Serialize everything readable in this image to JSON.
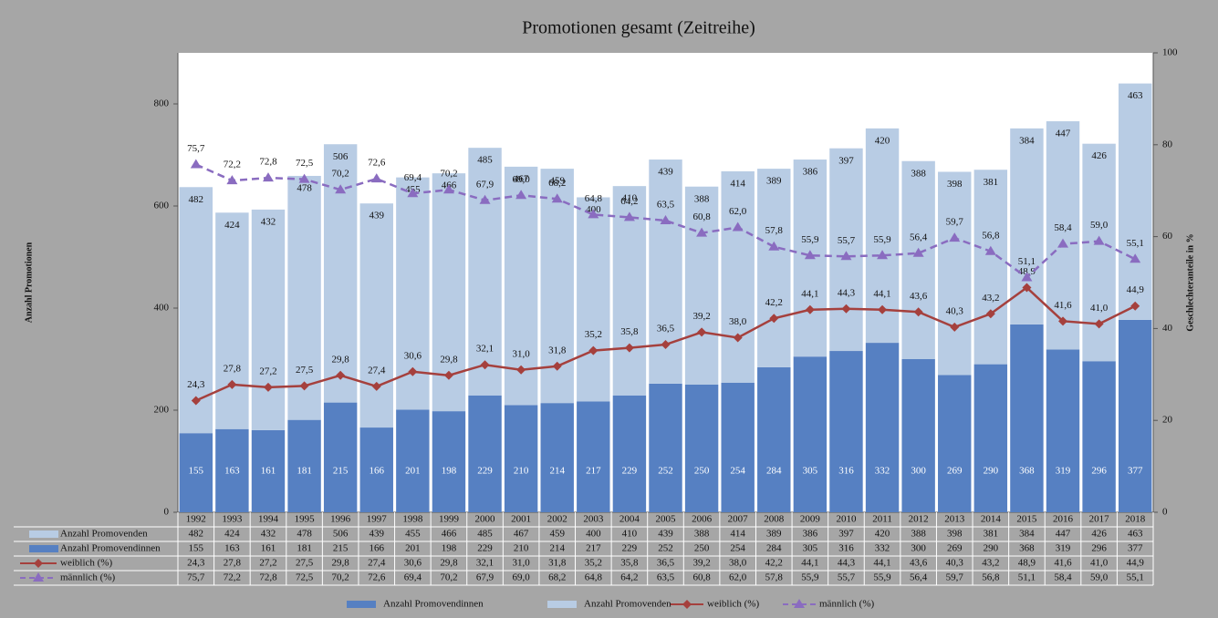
{
  "chart_data": {
    "type": "bar",
    "title": "Promotionen gesamt (Zeitreihe)",
    "ylabel": "Anzahl Promotionen",
    "y2label": "Geschlechteranteile in %",
    "categories": [
      "1992",
      "1993",
      "1994",
      "1995",
      "1996",
      "1997",
      "1998",
      "1999",
      "2000",
      "2001",
      "2002",
      "2003",
      "2004",
      "2005",
      "2006",
      "2007",
      "2008",
      "2009",
      "2010",
      "2011",
      "2012",
      "2013",
      "2014",
      "2015",
      "2016",
      "2017",
      "2018"
    ],
    "series": [
      {
        "name": "Anzahl Promovendinnen",
        "type": "bar",
        "color": "#5680c2",
        "values": [
          155,
          163,
          161,
          181,
          215,
          166,
          201,
          198,
          229,
          210,
          214,
          217,
          229,
          252,
          250,
          254,
          284,
          305,
          316,
          332,
          300,
          269,
          290,
          368,
          319,
          296,
          377
        ]
      },
      {
        "name": "Anzahl Promovenden",
        "type": "bar",
        "color": "#b8cce4",
        "values": [
          482,
          424,
          432,
          478,
          506,
          439,
          455,
          466,
          485,
          467,
          459,
          400,
          410,
          439,
          388,
          414,
          389,
          386,
          397,
          420,
          388,
          398,
          381,
          384,
          447,
          426,
          463
        ]
      },
      {
        "name": "weiblich (%)",
        "type": "line",
        "axis": "y2",
        "color": "#a5403d",
        "marker": "diamond",
        "dashed": false,
        "values": [
          24.3,
          27.8,
          27.2,
          27.5,
          29.8,
          27.4,
          30.6,
          29.8,
          32.1,
          31.0,
          31.8,
          35.2,
          35.8,
          36.5,
          39.2,
          38.0,
          42.2,
          44.1,
          44.3,
          44.1,
          43.6,
          40.3,
          43.2,
          48.9,
          41.6,
          41.0,
          44.9
        ],
        "value_labels": [
          "24,3",
          "27,8",
          "27,2",
          "27,5",
          "29,8",
          "27,4",
          "30,6",
          "29,8",
          "32,1",
          "31,0",
          "31,8",
          "35,2",
          "35,8",
          "36,5",
          "39,2",
          "38,0",
          "42,2",
          "44,1",
          "44,3",
          "44,1",
          "43,6",
          "40,3",
          "43,2",
          "48,9",
          "41,6",
          "41,0",
          "44,9"
        ]
      },
      {
        "name": "männlich (%)",
        "type": "line",
        "axis": "y2",
        "color": "#8a6cc0",
        "marker": "triangle",
        "dashed": true,
        "values": [
          75.7,
          72.2,
          72.8,
          72.5,
          70.2,
          72.6,
          69.4,
          70.2,
          67.9,
          69.0,
          68.2,
          64.8,
          64.2,
          63.5,
          60.8,
          62.0,
          57.8,
          55.9,
          55.7,
          55.9,
          56.4,
          59.7,
          56.8,
          51.1,
          58.4,
          59.0,
          55.1
        ],
        "value_labels": [
          "75,7",
          "72,2",
          "72,8",
          "72,5",
          "70,2",
          "72,6",
          "69,4",
          "70,2",
          "67,9",
          "69,0",
          "68,2",
          "64,8",
          "64,2",
          "63,5",
          "60,8",
          "62,0",
          "57,8",
          "55,9",
          "55,7",
          "55,9",
          "56,4",
          "59,7",
          "56,8",
          "51,1",
          "58,4",
          "59,0",
          "55,1"
        ]
      }
    ],
    "ylim": [
      0,
      900
    ],
    "yticks": [
      0,
      200,
      400,
      600,
      800
    ],
    "y2lim": [
      0,
      100
    ],
    "y2ticks": [
      0,
      20,
      40,
      60,
      80,
      100
    ],
    "legend": "bottom",
    "data_table": true
  }
}
